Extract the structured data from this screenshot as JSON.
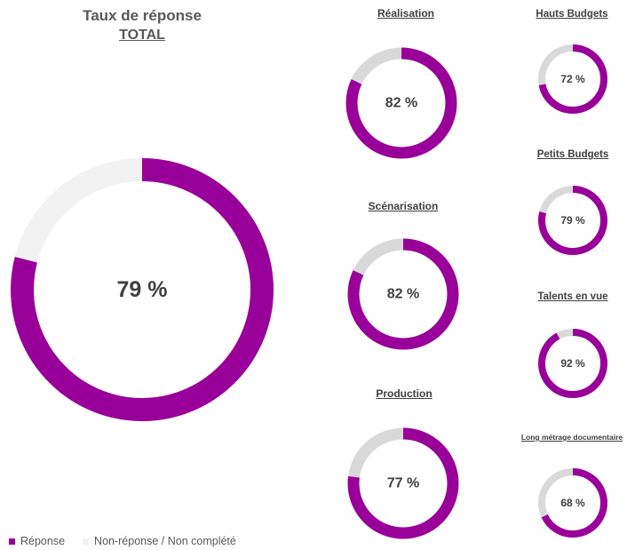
{
  "header": {
    "title": "Taux de réponse",
    "subtitle": "TOTAL"
  },
  "colors": {
    "response": "#990099",
    "nonresponse_main": "#f2f2f2",
    "nonresponse_small": "#d9d9d9"
  },
  "legend": {
    "response": "Réponse",
    "nonresponse": "Non-réponse / Non complété"
  },
  "chart_data": [
    {
      "type": "pie",
      "title": "TOTAL",
      "categories": [
        "Réponse",
        "Non-réponse / Non complété"
      ],
      "values": [
        79,
        21
      ],
      "label": "79 %"
    },
    {
      "type": "pie",
      "title": "Réalisation",
      "categories": [
        "Réponse",
        "Non-réponse / Non complété"
      ],
      "values": [
        82,
        18
      ],
      "label": "82 %"
    },
    {
      "type": "pie",
      "title": "Scénarisation",
      "categories": [
        "Réponse",
        "Non-réponse / Non complété"
      ],
      "values": [
        82,
        18
      ],
      "label": "82 %"
    },
    {
      "type": "pie",
      "title": "Production",
      "categories": [
        "Réponse",
        "Non-réponse / Non complété"
      ],
      "values": [
        77,
        23
      ],
      "label": "77 %"
    },
    {
      "type": "pie",
      "title": "Hauts Budgets",
      "categories": [
        "Réponse",
        "Non-réponse / Non complété"
      ],
      "values": [
        72,
        28
      ],
      "label": "72 %"
    },
    {
      "type": "pie",
      "title": "Petits Budgets",
      "categories": [
        "Réponse",
        "Non-réponse / Non complété"
      ],
      "values": [
        79,
        21
      ],
      "label": "79 %"
    },
    {
      "type": "pie",
      "title": "Talents en vue",
      "categories": [
        "Réponse",
        "Non-réponse / Non complété"
      ],
      "values": [
        92,
        8
      ],
      "label": "92 %"
    },
    {
      "type": "pie",
      "title": "Long métrage documentaire",
      "categories": [
        "Réponse",
        "Non-réponse / Non complété"
      ],
      "values": [
        68,
        32
      ],
      "label": "68 %"
    }
  ]
}
